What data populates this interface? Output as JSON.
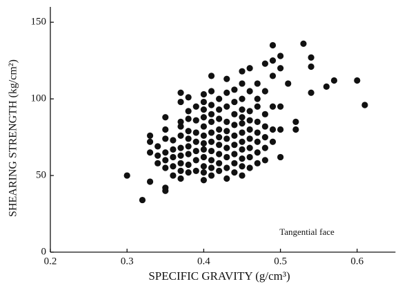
{
  "chart_data": {
    "type": "scatter",
    "x_label": "SPECIFIC GRAVITY (g/cm³)",
    "y_label": "SHEARING STRENGTH (kg/cm²)",
    "annotation": "Tangential face",
    "color": "#111111",
    "xlim": [
      0.2,
      0.65
    ],
    "ylim": [
      0,
      160
    ],
    "xticks": [
      0.2,
      0.3,
      0.4,
      0.5,
      0.6
    ],
    "yticks": [
      0,
      50,
      100,
      150
    ],
    "x": [
      0.3,
      0.32,
      0.33,
      0.33,
      0.33,
      0.33,
      0.34,
      0.34,
      0.34,
      0.35,
      0.35,
      0.35,
      0.35,
      0.35,
      0.35,
      0.35,
      0.35,
      0.36,
      0.36,
      0.36,
      0.36,
      0.36,
      0.37,
      0.37,
      0.37,
      0.37,
      0.37,
      0.37,
      0.37,
      0.37,
      0.37,
      0.37,
      0.38,
      0.38,
      0.38,
      0.38,
      0.38,
      0.38,
      0.38,
      0.38,
      0.38,
      0.39,
      0.39,
      0.39,
      0.39,
      0.39,
      0.39,
      0.39,
      0.4,
      0.4,
      0.4,
      0.4,
      0.4,
      0.4,
      0.4,
      0.4,
      0.4,
      0.4,
      0.4,
      0.4,
      0.41,
      0.41,
      0.41,
      0.41,
      0.41,
      0.41,
      0.41,
      0.41,
      0.41,
      0.41,
      0.41,
      0.42,
      0.42,
      0.42,
      0.42,
      0.42,
      0.42,
      0.42,
      0.42,
      0.42,
      0.43,
      0.43,
      0.43,
      0.43,
      0.43,
      0.43,
      0.43,
      0.43,
      0.43,
      0.43,
      0.44,
      0.44,
      0.44,
      0.44,
      0.44,
      0.44,
      0.44,
      0.44,
      0.44,
      0.45,
      0.45,
      0.45,
      0.45,
      0.45,
      0.45,
      0.45,
      0.45,
      0.45,
      0.45,
      0.45,
      0.45,
      0.46,
      0.46,
      0.46,
      0.46,
      0.46,
      0.46,
      0.46,
      0.46,
      0.46,
      0.47,
      0.47,
      0.47,
      0.47,
      0.47,
      0.47,
      0.47,
      0.47,
      0.48,
      0.48,
      0.48,
      0.48,
      0.48,
      0.48,
      0.48,
      0.49,
      0.49,
      0.49,
      0.49,
      0.49,
      0.49,
      0.5,
      0.5,
      0.5,
      0.5,
      0.5,
      0.51,
      0.52,
      0.52,
      0.53,
      0.54,
      0.54,
      0.54,
      0.56,
      0.57,
      0.6,
      0.61
    ],
    "values": [
      50,
      34,
      46,
      65,
      72,
      76,
      58,
      63,
      69,
      40,
      42,
      55,
      60,
      65,
      74,
      80,
      88,
      50,
      56,
      62,
      67,
      73,
      48,
      53,
      58,
      63,
      68,
      76,
      82,
      85,
      98,
      104,
      52,
      57,
      64,
      69,
      74,
      79,
      87,
      92,
      101,
      53,
      60,
      66,
      72,
      78,
      86,
      95,
      47,
      52,
      56,
      62,
      67,
      71,
      76,
      82,
      88,
      93,
      98,
      103,
      50,
      55,
      60,
      66,
      72,
      78,
      85,
      90,
      96,
      105,
      115,
      53,
      58,
      64,
      70,
      75,
      80,
      87,
      93,
      100,
      48,
      55,
      62,
      68,
      74,
      79,
      85,
      95,
      104,
      113,
      52,
      58,
      64,
      70,
      76,
      83,
      90,
      98,
      106,
      50,
      56,
      61,
      67,
      72,
      78,
      84,
      88,
      93,
      100,
      110,
      118,
      55,
      62,
      68,
      74,
      80,
      86,
      92,
      105,
      120,
      58,
      65,
      72,
      78,
      85,
      95,
      100,
      110,
      60,
      68,
      75,
      82,
      90,
      105,
      123,
      72,
      80,
      95,
      115,
      125,
      135,
      62,
      80,
      95,
      120,
      128,
      110,
      80,
      85,
      136,
      104,
      121,
      127,
      108,
      112,
      112,
      96
    ]
  }
}
